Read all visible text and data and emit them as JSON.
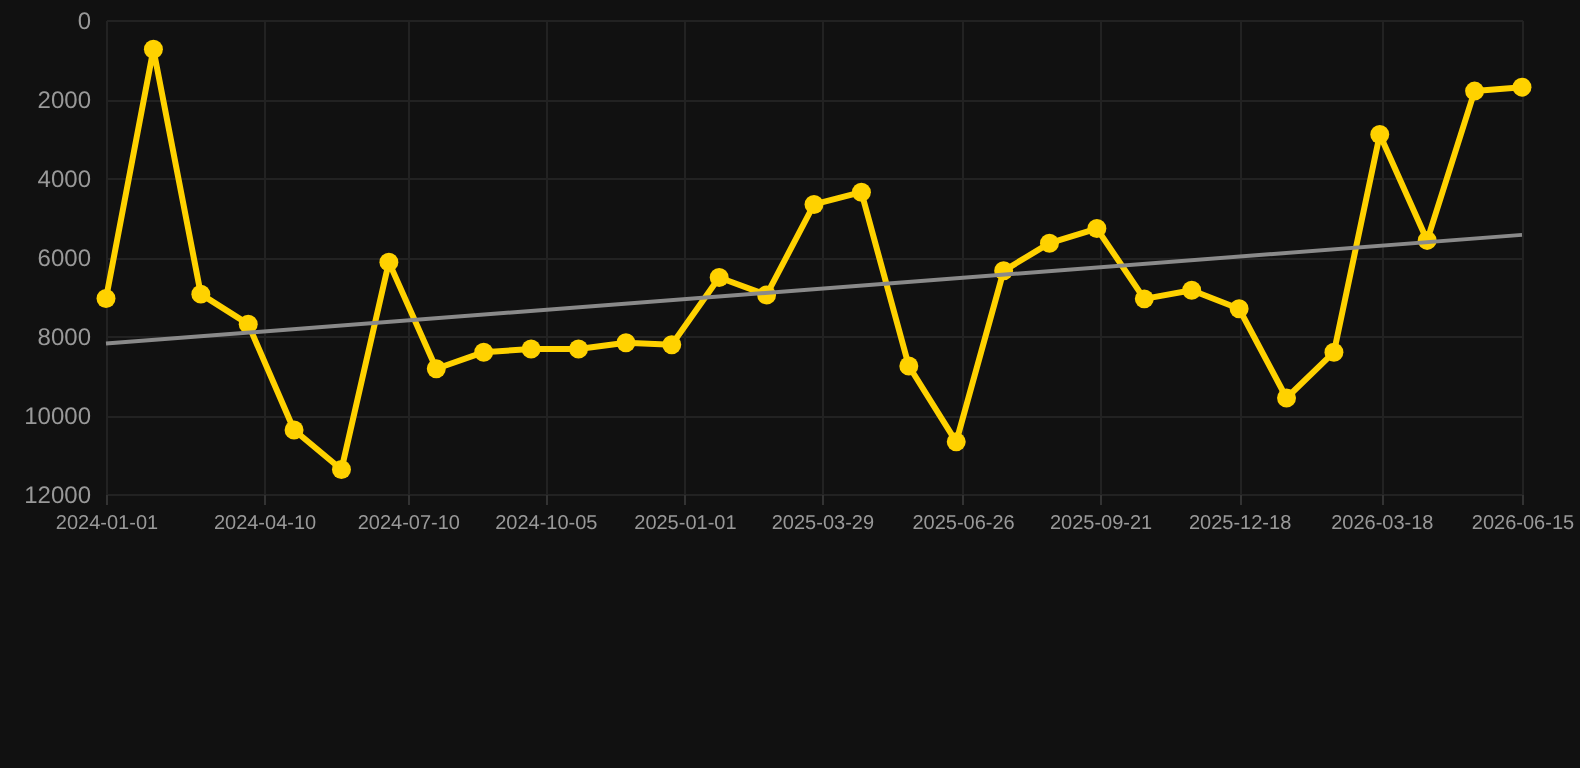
{
  "chart_data": {
    "type": "line",
    "x": [
      "2024-01-01",
      "2024-01-31",
      "2024-03-01",
      "2024-03-31",
      "2024-04-29",
      "2024-05-29",
      "2024-06-28",
      "2024-07-28",
      "2024-08-27",
      "2024-09-26",
      "2024-10-26",
      "2024-11-25",
      "2024-12-24",
      "2025-01-23",
      "2025-02-22",
      "2025-03-24",
      "2025-04-23",
      "2025-05-23",
      "2025-06-22",
      "2025-07-22",
      "2025-08-20",
      "2025-09-19",
      "2025-10-19",
      "2025-11-18",
      "2025-12-18",
      "2026-01-17",
      "2026-02-16",
      "2026-03-17",
      "2026-04-16",
      "2026-05-16",
      "2026-06-15"
    ],
    "series": [
      {
        "color": "#ffd200",
        "values": [
          7050,
          740,
          6940,
          7700,
          10380,
          11380,
          6130,
          8830,
          8410,
          8330,
          8330,
          8170,
          8220,
          6520,
          6960,
          4670,
          4360,
          8760,
          10680,
          6350,
          5650,
          5280,
          7060,
          6840,
          7310,
          9570,
          8410,
          2900,
          5580,
          1800,
          1700
        ]
      },
      {
        "type": "line",
        "color": "#8a8a8a",
        "marker": "none",
        "x": [
          "2024-01-01",
          "2026-06-15"
        ],
        "values": [
          8190,
          5440
        ]
      }
    ],
    "xlim": [
      "2024-01-01",
      "2026-06-15"
    ],
    "xticks": [
      "2024-01-01",
      "2024-04-10",
      "2024-07-10",
      "2024-10-05",
      "2025-01-01",
      "2025-03-29",
      "2025-06-26",
      "2025-09-21",
      "2025-12-18",
      "2026-03-18",
      "2026-06-15"
    ],
    "ylim": [
      12000,
      0
    ],
    "yticks": [
      0,
      2000,
      4000,
      6000,
      8000,
      10000,
      12000
    ],
    "grid": true,
    "marker": "circle",
    "line_style": "solid"
  }
}
